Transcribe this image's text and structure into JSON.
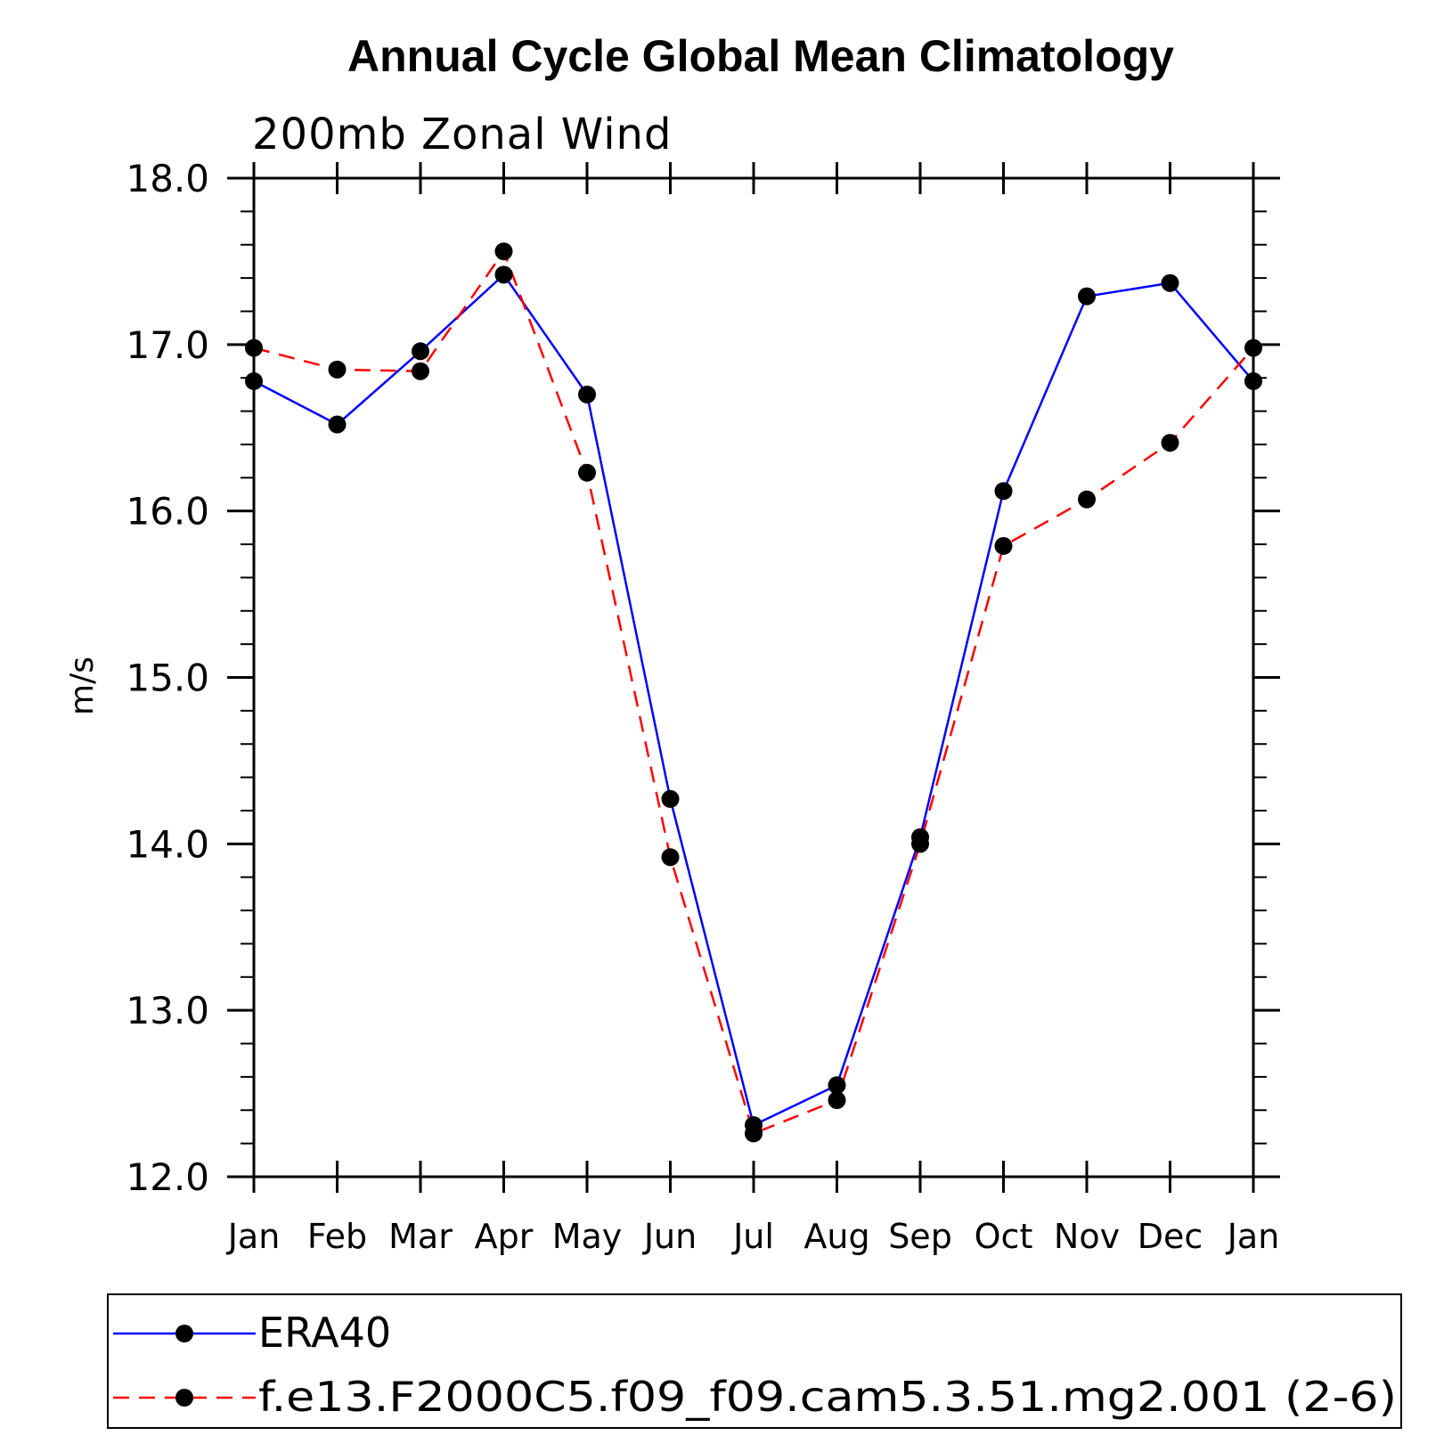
{
  "chart_data": {
    "type": "line",
    "title": "Annual Cycle Global Mean Climatology",
    "subtitle": "200mb Zonal Wind",
    "xlabel": "",
    "ylabel": "m/s",
    "ylim": [
      12.0,
      18.0
    ],
    "y_major_ticks": [
      "12.0",
      "13.0",
      "14.0",
      "15.0",
      "16.0",
      "17.0",
      "18.0"
    ],
    "y_minor_step": 0.2,
    "categories": [
      "Jan",
      "Feb",
      "Mar",
      "Apr",
      "May",
      "Jun",
      "Jul",
      "Aug",
      "Sep",
      "Oct",
      "Nov",
      "Dec",
      "Jan"
    ],
    "grid": false,
    "legend_position": "bottom",
    "series": [
      {
        "name": "ERA40",
        "color": "#0000ff",
        "dash": "solid",
        "values": [
          16.78,
          16.52,
          16.96,
          17.42,
          16.7,
          14.27,
          12.31,
          12.55,
          14.04,
          16.12,
          17.29,
          17.37,
          16.78
        ]
      },
      {
        "name": "f.e13.F2000C5.f09_f09.cam5.3.51.mg2.001 (2-6)",
        "color": "#ff0000",
        "dash": "dashed",
        "values": [
          16.98,
          16.85,
          16.84,
          17.56,
          16.23,
          13.92,
          12.26,
          12.46,
          14.0,
          15.79,
          16.07,
          16.41,
          16.98
        ]
      }
    ]
  }
}
